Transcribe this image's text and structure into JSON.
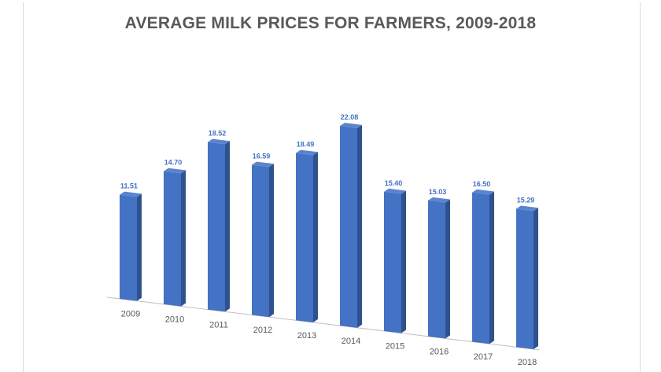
{
  "chart_data": {
    "type": "bar",
    "title": "AVERAGE MILK PRICES FOR FARMERS, 2009-2018",
    "xlabel": "",
    "ylabel": "",
    "categories": [
      "2009",
      "2010",
      "2011",
      "2012",
      "2013",
      "2014",
      "2015",
      "2016",
      "2017",
      "2018"
    ],
    "values": [
      11.51,
      14.7,
      18.52,
      16.59,
      18.49,
      22.08,
      15.4,
      15.03,
      16.5,
      15.29
    ],
    "data_labels": [
      "11.51",
      "14.70",
      "18.52",
      "16.59",
      "18.49",
      "22.08",
      "15.40",
      "15.03",
      "16.50",
      "15.29"
    ],
    "ylim": [
      0,
      24
    ],
    "grid": false,
    "legend": "none",
    "style": "3d-column",
    "colors": {
      "bar_front": "#4472c4",
      "bar_side": "#2f528f",
      "bar_top": "#5b84cf",
      "labels": "#4472c4",
      "title": "#595959",
      "axis": "#bfbfbf"
    }
  }
}
